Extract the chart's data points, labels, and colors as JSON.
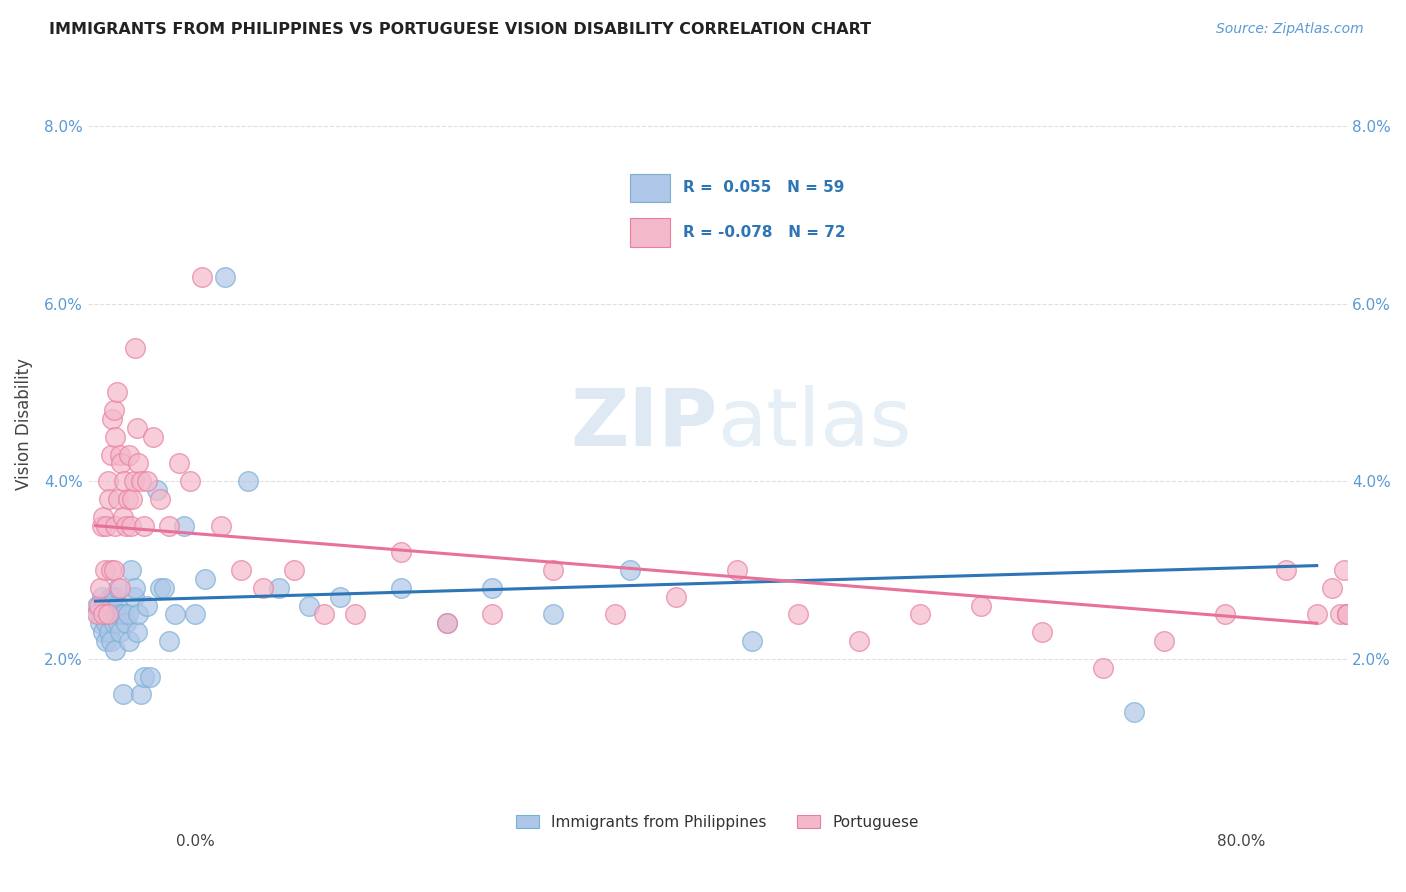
{
  "title": "IMMIGRANTS FROM PHILIPPINES VS PORTUGUESE VISION DISABILITY CORRELATION CHART",
  "source": "Source: ZipAtlas.com",
  "ylabel": "Vision Disability",
  "yticks": [
    "2.0%",
    "4.0%",
    "6.0%",
    "8.0%"
  ],
  "ytick_vals": [
    0.02,
    0.04,
    0.06,
    0.08
  ],
  "xlim": [
    -0.005,
    0.82
  ],
  "ylim": [
    0.005,
    0.088
  ],
  "watermark": "ZIPatlas",
  "legend_label1": "Immigrants from Philippines",
  "legend_label2": "Portuguese",
  "blue_scatter_face": "#aec6e8",
  "blue_scatter_edge": "#7aafd4",
  "pink_scatter_face": "#f4b8cb",
  "pink_scatter_edge": "#e87fa0",
  "blue_line_color": "#2E75B6",
  "pink_line_color": "#E8719A",
  "title_color": "#222222",
  "source_color": "#5b9bd5",
  "ytick_color": "#5b9bd5",
  "grid_color": "#d8d8d8",
  "legend_R1": "R =  0.055   N = 59",
  "legend_R2": "R = -0.078   N = 72",
  "philippines_x": [
    0.001,
    0.002,
    0.003,
    0.004,
    0.005,
    0.005,
    0.006,
    0.007,
    0.007,
    0.008,
    0.009,
    0.009,
    0.01,
    0.01,
    0.011,
    0.011,
    0.012,
    0.012,
    0.013,
    0.013,
    0.014,
    0.015,
    0.015,
    0.016,
    0.017,
    0.018,
    0.019,
    0.02,
    0.021,
    0.022,
    0.023,
    0.025,
    0.026,
    0.027,
    0.028,
    0.03,
    0.032,
    0.034,
    0.036,
    0.04,
    0.042,
    0.045,
    0.048,
    0.052,
    0.058,
    0.065,
    0.072,
    0.085,
    0.1,
    0.12,
    0.14,
    0.16,
    0.2,
    0.23,
    0.26,
    0.3,
    0.35,
    0.43,
    0.68
  ],
  "philippines_y": [
    0.026,
    0.025,
    0.024,
    0.027,
    0.023,
    0.026,
    0.025,
    0.024,
    0.022,
    0.026,
    0.025,
    0.023,
    0.027,
    0.022,
    0.025,
    0.026,
    0.027,
    0.024,
    0.025,
    0.021,
    0.026,
    0.028,
    0.024,
    0.023,
    0.025,
    0.016,
    0.025,
    0.024,
    0.025,
    0.022,
    0.03,
    0.027,
    0.028,
    0.023,
    0.025,
    0.016,
    0.018,
    0.026,
    0.018,
    0.039,
    0.028,
    0.028,
    0.022,
    0.025,
    0.035,
    0.025,
    0.029,
    0.063,
    0.04,
    0.028,
    0.026,
    0.027,
    0.028,
    0.024,
    0.028,
    0.025,
    0.03,
    0.022,
    0.014
  ],
  "portuguese_x": [
    0.001,
    0.002,
    0.003,
    0.004,
    0.005,
    0.005,
    0.006,
    0.007,
    0.008,
    0.008,
    0.009,
    0.01,
    0.01,
    0.011,
    0.012,
    0.012,
    0.013,
    0.013,
    0.014,
    0.015,
    0.016,
    0.016,
    0.017,
    0.018,
    0.019,
    0.02,
    0.021,
    0.022,
    0.023,
    0.024,
    0.025,
    0.026,
    0.027,
    0.028,
    0.03,
    0.032,
    0.034,
    0.038,
    0.042,
    0.048,
    0.055,
    0.062,
    0.07,
    0.082,
    0.095,
    0.11,
    0.13,
    0.15,
    0.17,
    0.2,
    0.23,
    0.26,
    0.3,
    0.34,
    0.38,
    0.42,
    0.46,
    0.5,
    0.54,
    0.58,
    0.62,
    0.66,
    0.7,
    0.74,
    0.78,
    0.8,
    0.81,
    0.815,
    0.818,
    0.82,
    0.82,
    0.82
  ],
  "portuguese_y": [
    0.025,
    0.026,
    0.028,
    0.035,
    0.036,
    0.025,
    0.03,
    0.035,
    0.04,
    0.025,
    0.038,
    0.043,
    0.03,
    0.047,
    0.048,
    0.03,
    0.045,
    0.035,
    0.05,
    0.038,
    0.043,
    0.028,
    0.042,
    0.036,
    0.04,
    0.035,
    0.038,
    0.043,
    0.035,
    0.038,
    0.04,
    0.055,
    0.046,
    0.042,
    0.04,
    0.035,
    0.04,
    0.045,
    0.038,
    0.035,
    0.042,
    0.04,
    0.063,
    0.035,
    0.03,
    0.028,
    0.03,
    0.025,
    0.025,
    0.032,
    0.024,
    0.025,
    0.03,
    0.025,
    0.027,
    0.03,
    0.025,
    0.022,
    0.025,
    0.026,
    0.023,
    0.019,
    0.022,
    0.025,
    0.03,
    0.025,
    0.028,
    0.025,
    0.03,
    0.025,
    0.025,
    0.025
  ]
}
